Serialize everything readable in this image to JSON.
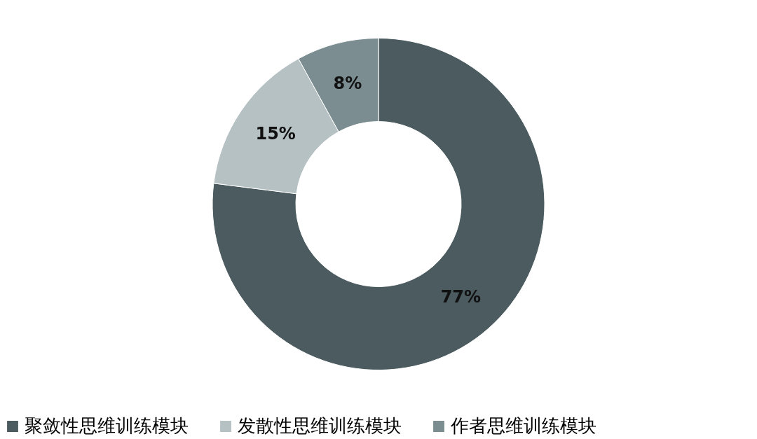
{
  "chart_data": {
    "type": "donut",
    "categories": [
      "聚敛性思维训练模块",
      "发散性思维训练模块",
      "作者思维训练模块"
    ],
    "values": [
      77,
      15,
      8
    ],
    "colors": [
      "#4b5b5f",
      "#b6c1c3",
      "#7b8d90"
    ],
    "value_labels": [
      "77%",
      "15%",
      "8%"
    ],
    "legend": "bottom"
  }
}
